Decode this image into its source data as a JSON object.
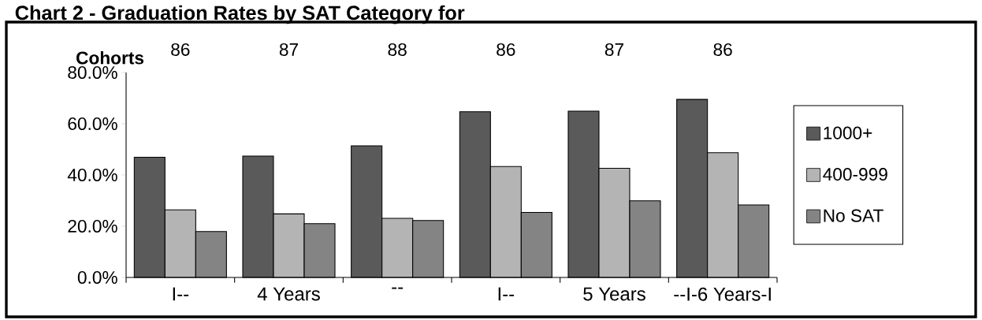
{
  "chart_data": {
    "type": "bar",
    "title": "Chart 2 - Graduation Rates by SAT Category for",
    "xlabel": "Cohorts",
    "categories": [
      "86",
      "87",
      "88",
      "86",
      "87",
      "86"
    ],
    "series": [
      {
        "name": "1000+",
        "color": "#5a5a5a",
        "values": [
          46.9,
          47.4,
          51.4,
          64.7,
          64.9,
          69.5
        ]
      },
      {
        "name": "400-999",
        "color": "#b4b4b4",
        "values": [
          26.4,
          24.8,
          23.1,
          43.3,
          42.6,
          48.7
        ]
      },
      {
        "name": "No SAT",
        "color": "#848484",
        "values": [
          17.9,
          21.0,
          22.2,
          25.4,
          29.9,
          28.3
        ]
      }
    ],
    "ylim": [
      0,
      80
    ],
    "yticks": [
      {
        "value": 0,
        "label": "0.0%"
      },
      {
        "value": 20,
        "label": "20.0%"
      },
      {
        "value": 40,
        "label": "40.0%"
      },
      {
        "value": 60,
        "label": "60.0%"
      },
      {
        "value": 80,
        "label": "80.0%"
      }
    ],
    "legend": "right",
    "annotations": [
      "I--",
      "4 Years",
      "--",
      "I--",
      "5 Years",
      "--I-6 Years-I"
    ]
  }
}
